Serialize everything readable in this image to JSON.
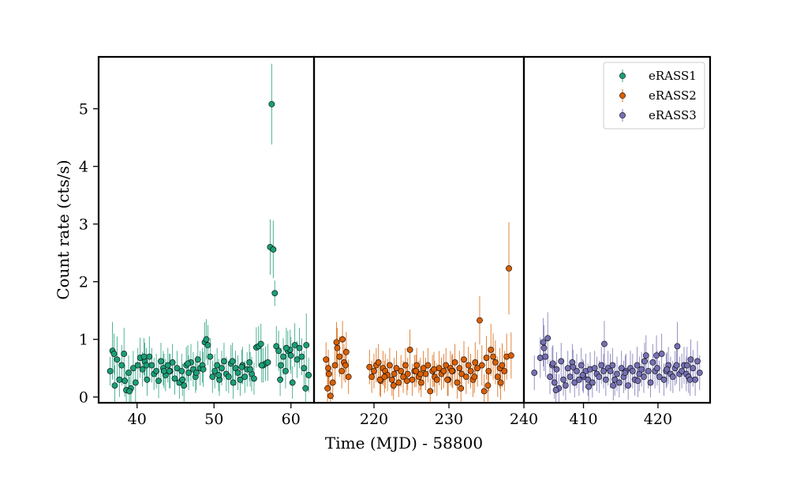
{
  "chart_data": {
    "type": "scatter",
    "xlabel": "Time (MJD) - 58800",
    "ylabel": "Count rate (cts/s)",
    "ylim": [
      -0.1,
      5.9
    ],
    "yticks": [
      "0",
      "1",
      "2",
      "3",
      "4",
      "5"
    ],
    "legend_position": "top-right",
    "panels": [
      {
        "name": "eRASS1",
        "color": "#1b9e77",
        "xlim": [
          35,
          63
        ],
        "xticks": [
          "40",
          "50",
          "60"
        ],
        "x": [
          36.5,
          36.8,
          37.1,
          37.4,
          37.7,
          38.0,
          38.3,
          38.6,
          38.9,
          39.2,
          39.5,
          39.8,
          40.1,
          40.4,
          40.7,
          41.0,
          41.3,
          41.6,
          41.9,
          42.2,
          42.5,
          42.8,
          43.1,
          43.4,
          43.7,
          44.0,
          44.3,
          44.6,
          44.9,
          45.2,
          45.5,
          45.8,
          46.1,
          46.4,
          46.7,
          47.0,
          47.3,
          47.6,
          47.9,
          48.2,
          48.5,
          48.8,
          49.0,
          49.2,
          49.5,
          49.8,
          50.1,
          50.4,
          50.7,
          51.0,
          51.3,
          51.6,
          51.9,
          52.2,
          52.5,
          52.8,
          53.1,
          53.4,
          53.7,
          54.0,
          54.3,
          54.6,
          54.9,
          55.2,
          55.5,
          55.8,
          56.1,
          56.4,
          56.7,
          57.0,
          57.3,
          57.5,
          57.7,
          57.9,
          58.1,
          58.4,
          58.7,
          59.0,
          59.3,
          59.6,
          59.9,
          60.2,
          60.5,
          60.8,
          61.1,
          61.4,
          61.7,
          62.0,
          62.3,
          37.0,
          39.0,
          41.2,
          43.5,
          45.9,
          47.7,
          50.6,
          52.4,
          54.7,
          56.2,
          58.6,
          60.0,
          61.9,
          38.4,
          40.9,
          44.2,
          46.6,
          48.6,
          53.6,
          59.4
        ],
        "y": [
          0.45,
          0.8,
          0.2,
          0.65,
          0.3,
          0.55,
          0.75,
          0.12,
          0.42,
          0.15,
          0.5,
          0.25,
          0.55,
          0.68,
          0.48,
          0.62,
          0.3,
          0.7,
          0.55,
          0.4,
          0.45,
          0.28,
          0.62,
          0.5,
          0.38,
          0.55,
          0.45,
          0.6,
          0.32,
          0.5,
          0.25,
          0.45,
          0.2,
          0.55,
          0.42,
          0.6,
          0.48,
          0.35,
          0.65,
          0.5,
          0.55,
          0.95,
          1.0,
          0.9,
          0.7,
          0.35,
          0.45,
          0.55,
          0.3,
          0.5,
          0.62,
          0.4,
          0.35,
          0.58,
          0.25,
          0.5,
          0.42,
          0.3,
          0.55,
          0.35,
          0.48,
          0.6,
          0.4,
          0.32,
          0.86,
          0.88,
          0.92,
          0.55,
          0.58,
          0.6,
          2.6,
          5.08,
          2.56,
          1.8,
          0.88,
          0.8,
          0.55,
          0.7,
          0.45,
          0.8,
          0.82,
          0.25,
          0.9,
          0.65,
          0.85,
          0.7,
          0.5,
          0.9,
          0.38,
          0.75,
          0.1,
          0.55,
          0.45,
          0.3,
          0.42,
          0.38,
          0.62,
          0.48,
          0.55,
          0.3,
          0.72,
          0.15,
          0.28,
          0.7,
          0.45,
          0.58,
          0.48,
          0.52,
          0.85
        ],
        "yerr": [
          0.25,
          0.5,
          0.35,
          0.4,
          0.3,
          0.35,
          0.45,
          0.3,
          0.3,
          0.28,
          0.3,
          0.35,
          0.3,
          0.35,
          0.3,
          0.32,
          0.28,
          0.35,
          0.3,
          0.28,
          0.3,
          0.3,
          0.32,
          0.3,
          0.28,
          0.3,
          0.3,
          0.32,
          0.28,
          0.3,
          0.28,
          0.3,
          0.28,
          0.32,
          0.3,
          0.32,
          0.3,
          0.28,
          0.32,
          0.3,
          0.3,
          0.35,
          0.35,
          0.35,
          0.32,
          0.28,
          0.3,
          0.3,
          0.28,
          0.3,
          0.32,
          0.3,
          0.28,
          0.32,
          0.28,
          0.3,
          0.3,
          0.28,
          0.32,
          0.28,
          0.3,
          0.32,
          0.3,
          0.28,
          0.35,
          0.35,
          0.35,
          0.3,
          0.3,
          0.32,
          0.48,
          0.7,
          0.5,
          0.22,
          0.35,
          0.35,
          0.3,
          0.32,
          0.3,
          0.35,
          0.35,
          0.28,
          0.38,
          0.32,
          0.35,
          0.32,
          0.3,
          0.55,
          0.3,
          0.35,
          0.25,
          0.3,
          0.3,
          0.28,
          0.3,
          0.28,
          0.32,
          0.3,
          0.3,
          0.28,
          0.32,
          0.26,
          0.28,
          0.32,
          0.3,
          0.32,
          0.3,
          0.3,
          0.35
        ]
      },
      {
        "name": "eRASS2",
        "color": "#d95f02",
        "xlim": [
          212,
          240
        ],
        "xticks": [
          "220",
          "230",
          "240"
        ],
        "x": [
          213.6,
          213.9,
          214.2,
          214.5,
          214.8,
          215.1,
          215.4,
          215.7,
          216.0,
          216.3,
          216.6,
          219.4,
          219.7,
          220.0,
          220.3,
          220.6,
          220.9,
          221.2,
          221.5,
          221.8,
          222.1,
          222.4,
          222.7,
          223.0,
          223.3,
          223.6,
          223.9,
          224.2,
          224.5,
          224.8,
          225.1,
          225.4,
          225.7,
          226.0,
          226.3,
          226.6,
          226.9,
          227.2,
          227.5,
          227.8,
          228.1,
          228.4,
          228.7,
          229.0,
          229.3,
          229.6,
          229.9,
          230.2,
          230.5,
          230.8,
          231.1,
          231.4,
          231.7,
          232.0,
          232.3,
          232.6,
          232.9,
          233.2,
          233.5,
          233.8,
          234.1,
          234.4,
          234.7,
          235.0,
          235.3,
          235.6,
          235.9,
          236.2,
          236.5,
          236.8,
          237.1,
          237.4,
          237.7,
          238.0,
          238.3,
          214.0,
          215.0,
          216.2,
          220.8,
          222.6,
          224.4,
          226.2,
          228.0,
          229.8,
          231.6,
          233.4,
          235.2,
          236.9,
          213.8,
          215.8,
          221.4,
          225.6,
          230.4
        ],
        "y": [
          0.65,
          0.5,
          0.02,
          0.25,
          0.55,
          0.85,
          0.7,
          0.45,
          0.6,
          0.78,
          0.35,
          0.52,
          0.35,
          0.45,
          0.55,
          0.6,
          0.28,
          0.5,
          0.45,
          0.38,
          0.55,
          0.3,
          0.4,
          0.5,
          0.25,
          0.45,
          0.35,
          0.55,
          0.4,
          0.82,
          0.3,
          0.45,
          0.55,
          0.35,
          0.25,
          0.5,
          0.4,
          0.55,
          0.1,
          0.45,
          0.35,
          0.3,
          0.5,
          0.4,
          0.45,
          0.55,
          0.3,
          0.5,
          0.45,
          0.6,
          0.25,
          0.5,
          0.4,
          0.65,
          0.35,
          0.55,
          0.45,
          0.3,
          0.6,
          0.5,
          1.33,
          0.55,
          0.1,
          0.68,
          0.45,
          0.82,
          0.7,
          0.6,
          0.35,
          0.5,
          0.55,
          0.45,
          0.7,
          2.23,
          0.72,
          0.4,
          0.95,
          0.55,
          0.3,
          0.2,
          0.28,
          0.4,
          0.48,
          0.3,
          0.15,
          0.35,
          0.2,
          0.25,
          0.15,
          1.0,
          0.35,
          0.45,
          0.45
        ],
        "yerr": [
          0.3,
          0.32,
          0.2,
          0.3,
          0.32,
          0.35,
          0.35,
          0.3,
          0.32,
          0.35,
          0.3,
          0.3,
          0.28,
          0.3,
          0.3,
          0.32,
          0.28,
          0.3,
          0.3,
          0.28,
          0.3,
          0.28,
          0.28,
          0.3,
          0.25,
          0.28,
          0.28,
          0.3,
          0.28,
          0.35,
          0.28,
          0.28,
          0.3,
          0.28,
          0.25,
          0.3,
          0.28,
          0.3,
          0.22,
          0.28,
          0.28,
          0.28,
          0.3,
          0.28,
          0.3,
          0.3,
          0.28,
          0.3,
          0.3,
          0.32,
          0.28,
          0.3,
          0.3,
          0.32,
          0.3,
          0.32,
          0.3,
          0.3,
          0.35,
          0.32,
          0.42,
          0.35,
          0.3,
          0.38,
          0.35,
          0.45,
          0.4,
          0.38,
          0.35,
          0.35,
          0.38,
          0.35,
          0.4,
          0.8,
          0.4,
          0.28,
          0.35,
          0.3,
          0.28,
          0.25,
          0.25,
          0.28,
          0.3,
          0.28,
          0.25,
          0.28,
          0.28,
          0.3,
          0.25,
          0.32,
          0.28,
          0.28,
          0.28
        ]
      },
      {
        "name": "eRASS3",
        "color": "#7570b3",
        "xlim": [
          402,
          427
        ],
        "xticks": [
          "410",
          "420"
        ],
        "x": [
          403.4,
          404.2,
          404.6,
          404.9,
          405.2,
          405.5,
          405.8,
          406.1,
          406.4,
          406.7,
          407.0,
          407.3,
          407.6,
          407.9,
          408.2,
          408.5,
          408.8,
          409.1,
          409.4,
          409.7,
          410.0,
          410.3,
          410.6,
          410.9,
          411.2,
          411.5,
          411.8,
          412.1,
          412.4,
          412.7,
          413.0,
          413.3,
          413.6,
          413.9,
          414.2,
          414.5,
          414.8,
          415.1,
          415.4,
          415.7,
          416.0,
          416.3,
          416.6,
          416.9,
          417.2,
          417.5,
          417.8,
          418.1,
          418.4,
          418.7,
          419.0,
          419.3,
          419.6,
          419.9,
          420.2,
          420.5,
          420.8,
          421.1,
          421.4,
          421.7,
          422.0,
          422.3,
          422.6,
          422.9,
          423.2,
          423.5,
          423.8,
          424.1,
          424.4,
          424.7,
          425.0,
          425.3,
          425.6,
          404.7,
          406.3,
          408.6,
          410.7,
          412.8,
          415.6,
          417.3,
          419.8,
          422.5,
          424.3,
          405.9,
          409.9,
          414.0,
          418.2,
          421.2,
          423.9
        ],
        "y": [
          0.42,
          0.68,
          0.95,
          0.7,
          1.02,
          0.35,
          0.55,
          0.25,
          0.48,
          0.15,
          0.62,
          0.3,
          0.2,
          0.5,
          0.35,
          0.6,
          0.25,
          0.45,
          0.3,
          0.55,
          0.35,
          0.45,
          0.3,
          0.48,
          0.25,
          0.5,
          0.4,
          0.35,
          0.55,
          0.45,
          0.3,
          0.5,
          0.45,
          0.55,
          0.3,
          0.4,
          0.25,
          0.5,
          0.35,
          0.45,
          0.2,
          0.5,
          0.45,
          0.3,
          0.55,
          0.4,
          0.48,
          0.35,
          0.72,
          0.45,
          0.25,
          0.6,
          0.45,
          0.5,
          0.35,
          0.75,
          0.3,
          0.45,
          0.55,
          0.4,
          0.35,
          0.5,
          0.88,
          0.4,
          0.45,
          0.55,
          0.4,
          0.35,
          0.65,
          0.5,
          0.3,
          0.62,
          0.42,
          0.85,
          0.12,
          0.52,
          0.18,
          0.92,
          0.42,
          0.28,
          0.72,
          0.55,
          0.3,
          0.58,
          0.38,
          0.2,
          0.62,
          0.48,
          0.55
        ],
        "yerr": [
          0.3,
          0.35,
          0.42,
          0.35,
          0.45,
          0.3,
          0.32,
          0.28,
          0.3,
          0.25,
          0.32,
          0.28,
          0.26,
          0.3,
          0.28,
          0.32,
          0.26,
          0.3,
          0.28,
          0.3,
          0.28,
          0.3,
          0.28,
          0.3,
          0.26,
          0.3,
          0.3,
          0.28,
          0.32,
          0.3,
          0.28,
          0.3,
          0.3,
          0.3,
          0.28,
          0.3,
          0.26,
          0.3,
          0.28,
          0.3,
          0.25,
          0.3,
          0.3,
          0.28,
          0.32,
          0.3,
          0.3,
          0.28,
          0.35,
          0.3,
          0.26,
          0.32,
          0.3,
          0.3,
          0.28,
          0.35,
          0.28,
          0.3,
          0.32,
          0.3,
          0.28,
          0.3,
          0.42,
          0.3,
          0.3,
          0.32,
          0.3,
          0.28,
          0.35,
          0.32,
          0.28,
          0.35,
          0.3,
          0.4,
          0.28,
          0.3,
          0.26,
          0.4,
          0.3,
          0.28,
          0.35,
          0.32,
          0.28,
          0.32,
          0.28,
          0.26,
          0.32,
          0.3,
          0.32
        ]
      }
    ]
  }
}
